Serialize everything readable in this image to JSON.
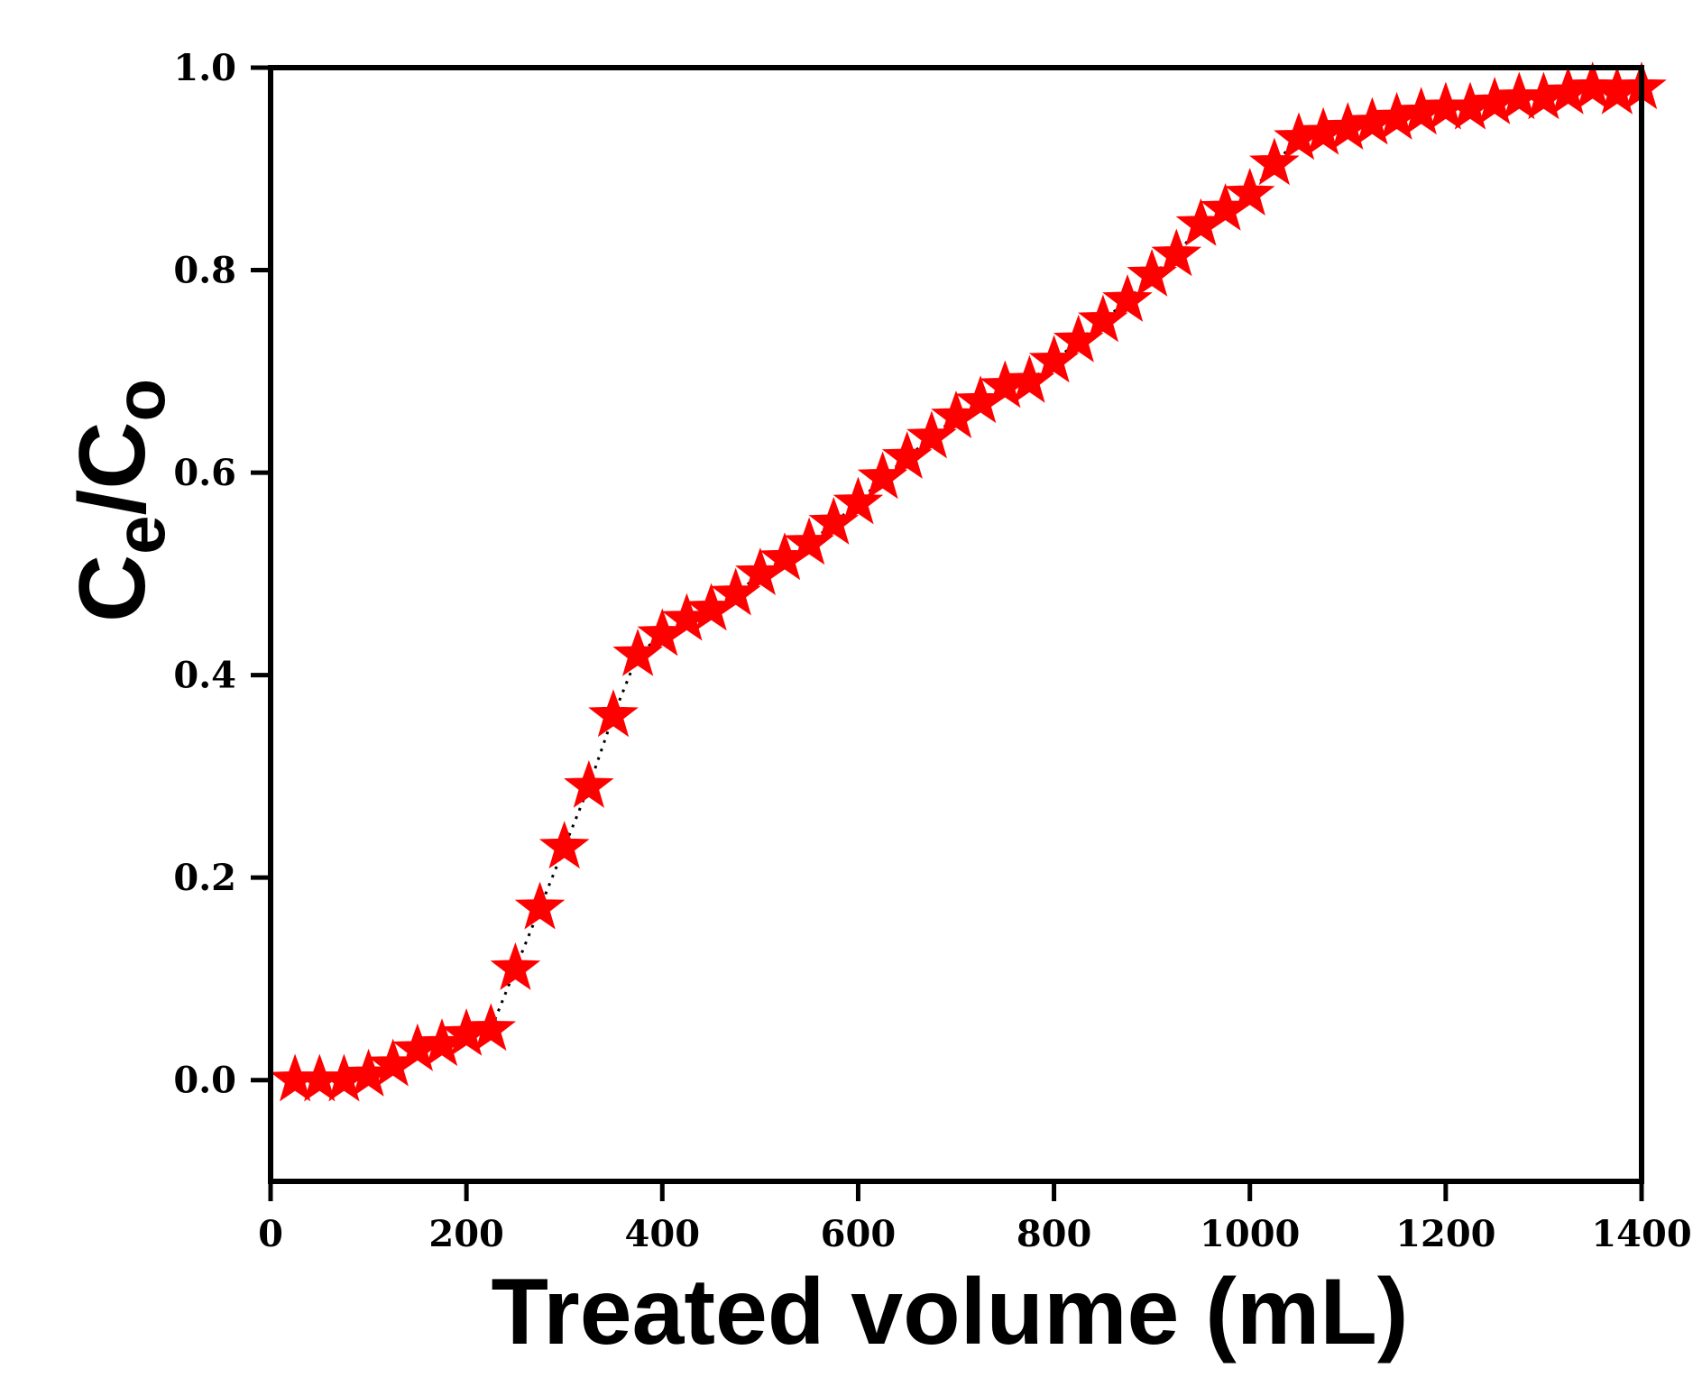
{
  "chart_data": {
    "type": "scatter",
    "title": "",
    "xlabel": "Treated volume (mL)",
    "ylabel_main": "C",
    "ylabel_sub1": "e",
    "ylabel_slash": "/",
    "ylabel_main2": "C",
    "ylabel_sub2": "o",
    "xlim": [
      0,
      1400
    ],
    "ylim": [
      -0.1,
      1.0
    ],
    "x_ticks": [
      0,
      200,
      400,
      600,
      800,
      1000,
      1200,
      1400
    ],
    "x_tick_labels": [
      "0",
      "200",
      "400",
      "600",
      "800",
      "1000",
      "1200",
      "1400"
    ],
    "y_ticks": [
      0.0,
      0.2,
      0.4,
      0.6,
      0.8,
      1.0
    ],
    "y_tick_labels": [
      "0.0",
      "0.2",
      "0.4",
      "0.6",
      "0.8",
      "1.0"
    ],
    "grid": false,
    "legend": "none",
    "marker": "star",
    "series": [
      {
        "name": "Ce/Co",
        "color": "#ff0000",
        "line_color": "#000000",
        "line_style": "dotted",
        "x": [
          25,
          50,
          75,
          100,
          125,
          150,
          175,
          200,
          225,
          250,
          275,
          300,
          325,
          350,
          375,
          400,
          425,
          450,
          475,
          500,
          525,
          550,
          575,
          600,
          625,
          650,
          675,
          700,
          725,
          750,
          775,
          800,
          825,
          850,
          875,
          900,
          925,
          950,
          975,
          1000,
          1025,
          1050,
          1075,
          1100,
          1125,
          1150,
          1175,
          1200,
          1225,
          1250,
          1275,
          1300,
          1325,
          1350,
          1375,
          1400
        ],
        "y": [
          0.0,
          0.0,
          0.0,
          0.005,
          0.015,
          0.03,
          0.035,
          0.045,
          0.05,
          0.11,
          0.17,
          0.23,
          0.29,
          0.36,
          0.42,
          0.44,
          0.455,
          0.465,
          0.48,
          0.5,
          0.515,
          0.53,
          0.55,
          0.57,
          0.595,
          0.615,
          0.635,
          0.655,
          0.67,
          0.685,
          0.69,
          0.71,
          0.73,
          0.75,
          0.77,
          0.795,
          0.815,
          0.845,
          0.86,
          0.875,
          0.905,
          0.93,
          0.935,
          0.94,
          0.945,
          0.95,
          0.955,
          0.96,
          0.96,
          0.965,
          0.97,
          0.97,
          0.975,
          0.98,
          0.975,
          0.98
        ]
      }
    ]
  }
}
